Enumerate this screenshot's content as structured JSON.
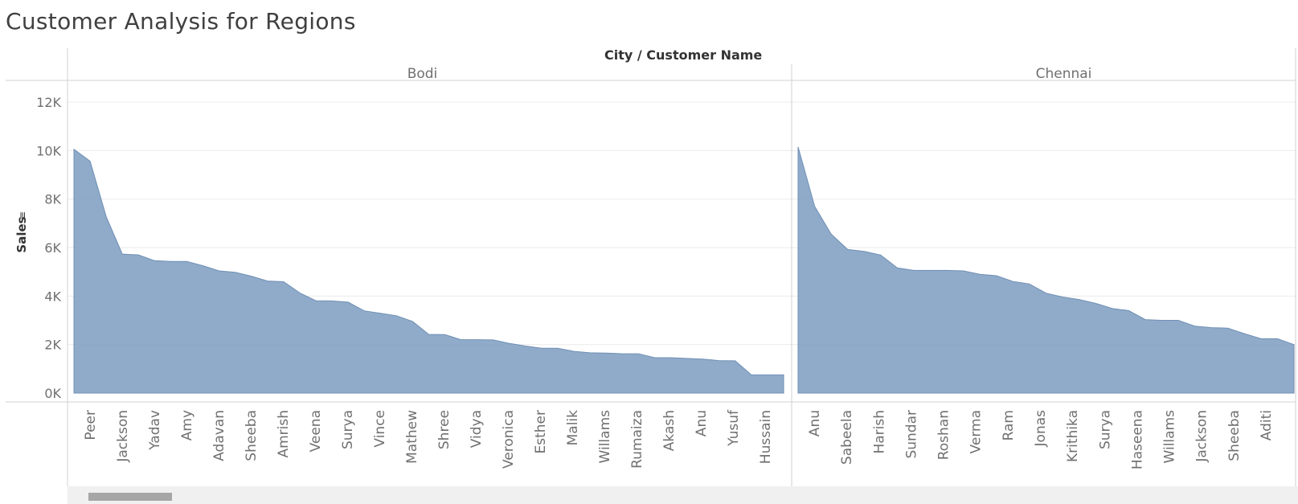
{
  "title": "Customer Analysis for Regions",
  "header": {
    "column_title": "City / Customer Name"
  },
  "colors": {
    "area_fill": "#7c9cc0",
    "area_stroke": "#6f8fb5",
    "gridline": "#ebebeb",
    "axis_text": "#707070",
    "divider": "#d0d0d0"
  },
  "chart_data": {
    "type": "area",
    "title": "Customer Analysis for Regions",
    "ylabel": "Sales",
    "yticks": [
      "12K",
      "10K",
      "8K",
      "6K",
      "4K",
      "2K",
      "0K"
    ],
    "ylim": [
      0,
      12000
    ],
    "grid": true,
    "panels": [
      {
        "city": "Bodi",
        "labels": [
          "Peer",
          "Jackson",
          "Yadav",
          "Amy",
          "Adavan",
          "Sheeba",
          "Amrish",
          "Veena",
          "Surya",
          "Vince",
          "Mathew",
          "Shree",
          "Vidya",
          "Veronica",
          "Esther",
          "Malik",
          "Willams",
          "Rumaiza",
          "Akash",
          "Anu",
          "Yusuf",
          "Hussain"
        ],
        "values": [
          10050,
          9560,
          7280,
          5730,
          5700,
          5460,
          5430,
          5430,
          5250,
          5040,
          4980,
          4820,
          4620,
          4590,
          4130,
          3810,
          3800,
          3750,
          3390,
          3290,
          3190,
          2950,
          2420,
          2410,
          2200,
          2200,
          2190,
          2050,
          1940,
          1850,
          1850,
          1720,
          1660,
          1650,
          1620,
          1620,
          1460,
          1460,
          1430,
          1400,
          1340,
          1330,
          750,
          750,
          750
        ]
      },
      {
        "city": "Chennai",
        "labels": [
          "Anu",
          "Sabeela",
          "Harish",
          "Sundar",
          "Roshan",
          "Verma",
          "Ram",
          "Jonas",
          "Krithika",
          "Surya",
          "Haseena",
          "Willams",
          "Jackson",
          "Sheeba",
          "Aditi"
        ],
        "values": [
          10150,
          7700,
          6560,
          5920,
          5840,
          5690,
          5160,
          5060,
          5060,
          5060,
          5040,
          4900,
          4840,
          4600,
          4500,
          4120,
          3960,
          3860,
          3700,
          3490,
          3400,
          3030,
          3000,
          3000,
          2760,
          2700,
          2680,
          2450,
          2240,
          2240,
          2000
        ]
      }
    ]
  }
}
